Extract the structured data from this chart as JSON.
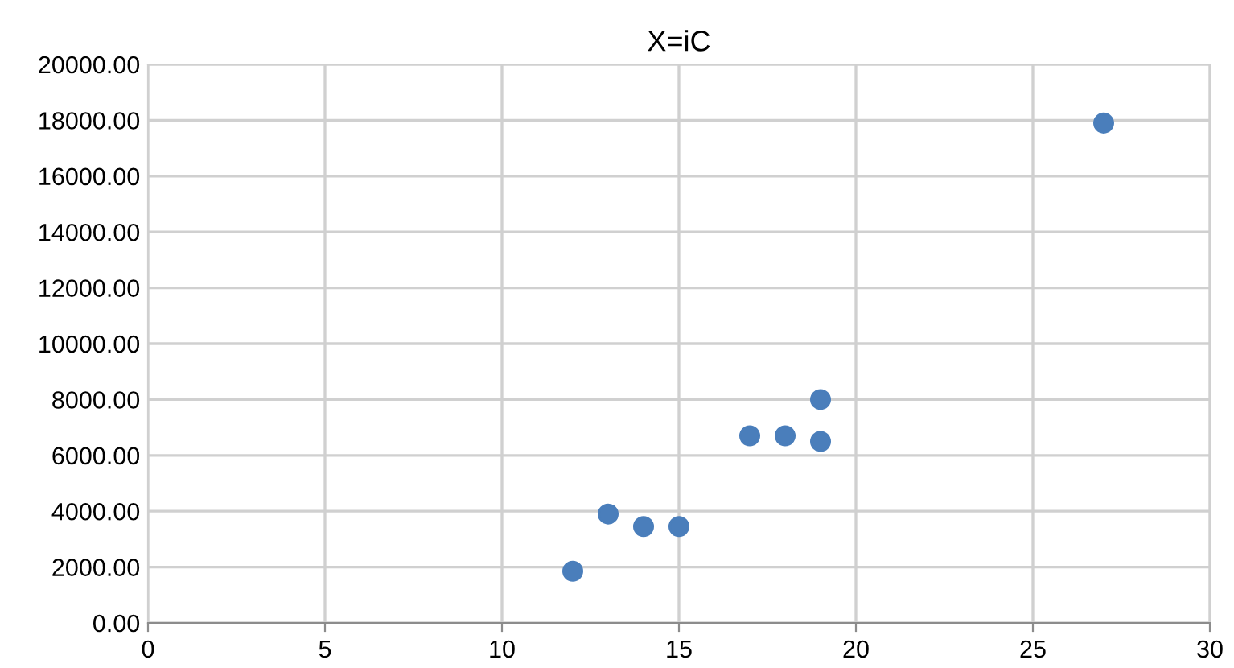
{
  "chart_data": {
    "type": "scatter",
    "title": "X=iC",
    "x": [
      12,
      13,
      14,
      15,
      17,
      18,
      19,
      19,
      27
    ],
    "series": [
      {
        "color": "#4a7ebb",
        "values": [
          1850,
          3900,
          3450,
          3450,
          6700,
          6700,
          8000,
          6500,
          17900
        ]
      }
    ],
    "xlim": [
      0,
      30
    ],
    "xticks": [
      0,
      5,
      10,
      15,
      20,
      25,
      30
    ],
    "ylim": [
      0,
      20000
    ],
    "yticks": [
      {
        "value": 0,
        "label": "0.00"
      },
      {
        "value": 2000,
        "label": "2000.00"
      },
      {
        "value": 4000,
        "label": "4000.00"
      },
      {
        "value": 6000,
        "label": "6000.00"
      },
      {
        "value": 8000,
        "label": "8000.00"
      },
      {
        "value": 10000,
        "label": "10000.00"
      },
      {
        "value": 12000,
        "label": "12000.00"
      },
      {
        "value": 14000,
        "label": "14000.00"
      },
      {
        "value": 16000,
        "label": "16000.00"
      },
      {
        "value": 18000,
        "label": "18000.00"
      },
      {
        "value": 20000,
        "label": "20000.00"
      }
    ],
    "grid": true,
    "marker": "circle"
  }
}
